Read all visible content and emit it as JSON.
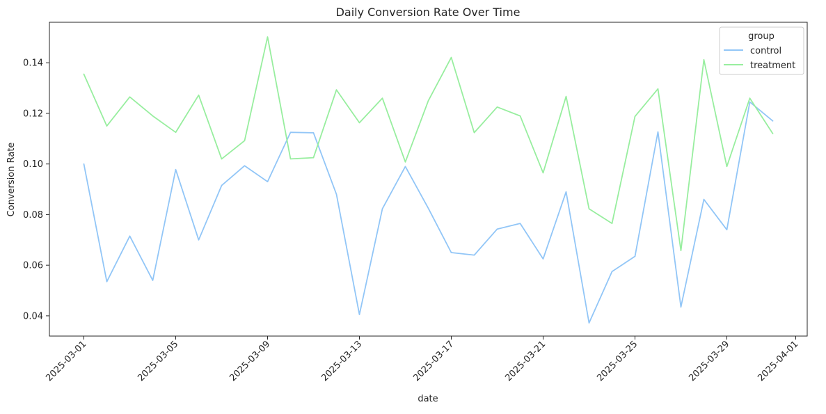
{
  "chart_data": {
    "type": "line",
    "title": "Daily Conversion Rate Over Time",
    "xlabel": "date",
    "ylabel": "Conversion Rate",
    "ylim": [
      0.032,
      0.156
    ],
    "x_ticks": [
      "2025-03-01",
      "2025-03-05",
      "2025-03-09",
      "2025-03-13",
      "2025-03-17",
      "2025-03-21",
      "2025-03-25",
      "2025-03-29",
      "2025-04-01"
    ],
    "y_ticks": [
      "0.04",
      "0.06",
      "0.08",
      "0.10",
      "0.12",
      "0.14"
    ],
    "legend": {
      "title": "group",
      "position": "top-right"
    },
    "x": [
      "2025-03-01",
      "2025-03-02",
      "2025-03-03",
      "2025-03-04",
      "2025-03-05",
      "2025-03-06",
      "2025-03-07",
      "2025-03-08",
      "2025-03-09",
      "2025-03-10",
      "2025-03-11",
      "2025-03-12",
      "2025-03-13",
      "2025-03-14",
      "2025-03-15",
      "2025-03-16",
      "2025-03-17",
      "2025-03-18",
      "2025-03-19",
      "2025-03-20",
      "2025-03-21",
      "2025-03-22",
      "2025-03-23",
      "2025-03-24",
      "2025-03-25",
      "2025-03-26",
      "2025-03-27",
      "2025-03-28",
      "2025-03-29",
      "2025-03-30",
      "2025-03-31"
    ],
    "series": [
      {
        "name": "control",
        "color": "#92c6f7",
        "values": [
          0.1,
          0.0535,
          0.0715,
          0.054,
          0.0978,
          0.07,
          0.0915,
          0.0993,
          0.093,
          0.1125,
          0.1123,
          0.088,
          0.0405,
          0.0823,
          0.099,
          0.0825,
          0.065,
          0.064,
          0.0743,
          0.0765,
          0.0625,
          0.089,
          0.0372,
          0.0575,
          0.0635,
          0.1127,
          0.0435,
          0.086,
          0.074,
          0.1245,
          0.117
        ]
      },
      {
        "name": "treatment",
        "color": "#98ee9f",
        "values": [
          0.1355,
          0.115,
          0.1265,
          0.119,
          0.1125,
          0.1272,
          0.102,
          0.1092,
          0.1502,
          0.102,
          0.1025,
          0.1293,
          0.1163,
          0.126,
          0.1008,
          0.125,
          0.1421,
          0.1124,
          0.1225,
          0.119,
          0.0965,
          0.1267,
          0.0823,
          0.0765,
          0.1188,
          0.1297,
          0.0658,
          0.1412,
          0.099,
          0.126,
          0.112
        ]
      }
    ]
  }
}
